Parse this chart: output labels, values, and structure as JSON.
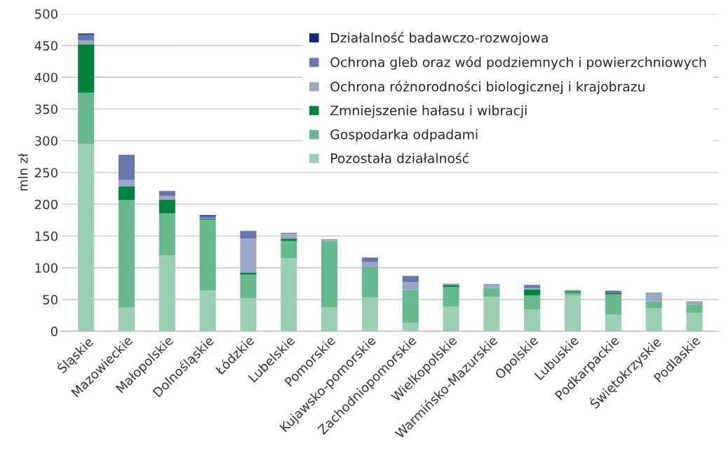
{
  "chart_data": {
    "type": "bar",
    "stacked": true,
    "ylabel": "mln zł",
    "categories": [
      "Śląskie",
      "Mazowieckie",
      "Małopolskie",
      "Dolnośląskie",
      "Łódzkie",
      "Lubelskie",
      "Pomorskie",
      "Kujawsko-pomorskie",
      "Zachodniopomorskie",
      "Wielkopolskie",
      "Warmińsko-Mazurskie",
      "Opolskie",
      "Lubuskie",
      "Podkarpackie",
      "Świętokrzyskie",
      "Podlaskie"
    ],
    "series": [
      {
        "name": "Pozostała działalność",
        "color": "#9bcfb2",
        "values": [
          295,
          37,
          119,
          64,
          52,
          115,
          38,
          53,
          13,
          39,
          54,
          34,
          57,
          26,
          36,
          29
        ]
      },
      {
        "name": "Gospodarka odpadami",
        "color": "#66b88d",
        "values": [
          81,
          170,
          67,
          112,
          37,
          27,
          104,
          48,
          52,
          31,
          14,
          22,
          4,
          32,
          11,
          13
        ]
      },
      {
        "name": "Zmniejszenie hałasu i wibracji",
        "color": "#00843d",
        "values": [
          76,
          21,
          21,
          1,
          3,
          4,
          0,
          0,
          0,
          3,
          0,
          10,
          2,
          2,
          0,
          0
        ]
      },
      {
        "name": "Ochrona różnorodności biologicznej i krajobrazu",
        "color": "#9aa7cb",
        "values": [
          6,
          10,
          6,
          1,
          54,
          8,
          3,
          8,
          12,
          1,
          5,
          2,
          2,
          0,
          14,
          4
        ]
      },
      {
        "name": "Ochrona gleb oraz wód podziemnych i powierzchniowych",
        "color": "#6677ae",
        "values": [
          9,
          40,
          8,
          3,
          12,
          1,
          0,
          7,
          10,
          1,
          1,
          5,
          0,
          4,
          0,
          1
        ]
      },
      {
        "name": "Działalność badawczo-rozwojowa",
        "color": "#0b2a7a",
        "values": [
          2,
          0,
          0,
          2,
          0,
          0,
          0,
          0,
          0,
          0,
          0,
          0,
          0,
          0,
          0,
          0
        ]
      }
    ],
    "ylim": [
      0,
      500
    ],
    "yticks": [
      0,
      50,
      100,
      150,
      200,
      250,
      300,
      350,
      400,
      450,
      500
    ],
    "grid": "y",
    "legend": "top right"
  }
}
